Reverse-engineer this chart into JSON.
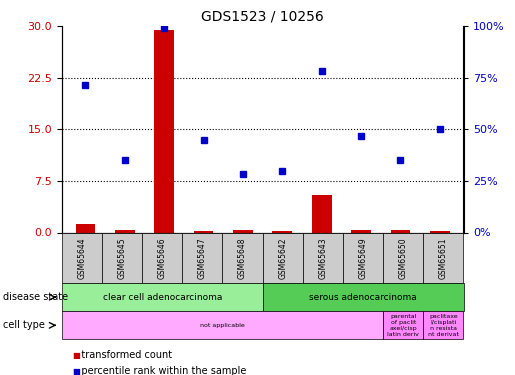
{
  "title": "GDS1523 / 10256",
  "samples": [
    "GSM65644",
    "GSM65645",
    "GSM65646",
    "GSM65647",
    "GSM65648",
    "GSM65642",
    "GSM65643",
    "GSM65649",
    "GSM65650",
    "GSM65651"
  ],
  "transformed_counts": [
    1.2,
    0.3,
    29.5,
    0.2,
    0.3,
    0.2,
    5.5,
    0.3,
    0.4,
    0.2
  ],
  "percentile_ranks": [
    21.5,
    10.5,
    29.7,
    13.5,
    8.5,
    9.0,
    23.5,
    14.0,
    10.5,
    15.0
  ],
  "left_ylim": [
    0,
    30
  ],
  "left_yticks": [
    0,
    7.5,
    15,
    22.5,
    30
  ],
  "right_ylim": [
    0,
    100
  ],
  "right_yticks": [
    0,
    25,
    50,
    75,
    100
  ],
  "right_yticklabels": [
    "0%",
    "25%",
    "50%",
    "75%",
    "100%"
  ],
  "hlines": [
    7.5,
    15,
    22.5
  ],
  "bar_color": "#cc0000",
  "dot_color": "#0000cc",
  "disease_state_groups": [
    {
      "label": "clear cell adenocarcinoma",
      "start": 0,
      "end": 5,
      "color": "#99ee99"
    },
    {
      "label": "serous adenocarcinoma",
      "start": 5,
      "end": 10,
      "color": "#55cc55"
    }
  ],
  "cell_type_groups": [
    {
      "label": "not applicable",
      "start": 0,
      "end": 8,
      "color": "#ffaaff"
    },
    {
      "label": "parental\nof paclit\naxel/cisp\nlatin deriv",
      "start": 8,
      "end": 9,
      "color": "#ff88ff"
    },
    {
      "label": "paclitaxe\nl/cisplati\nn resista\nnt derivat",
      "start": 9,
      "end": 10,
      "color": "#ff88ff"
    }
  ],
  "tick_label_color_left": "#cc0000",
  "tick_label_color_right": "#0000cc",
  "sample_box_color": "#cccccc",
  "background_color": "#ffffff"
}
